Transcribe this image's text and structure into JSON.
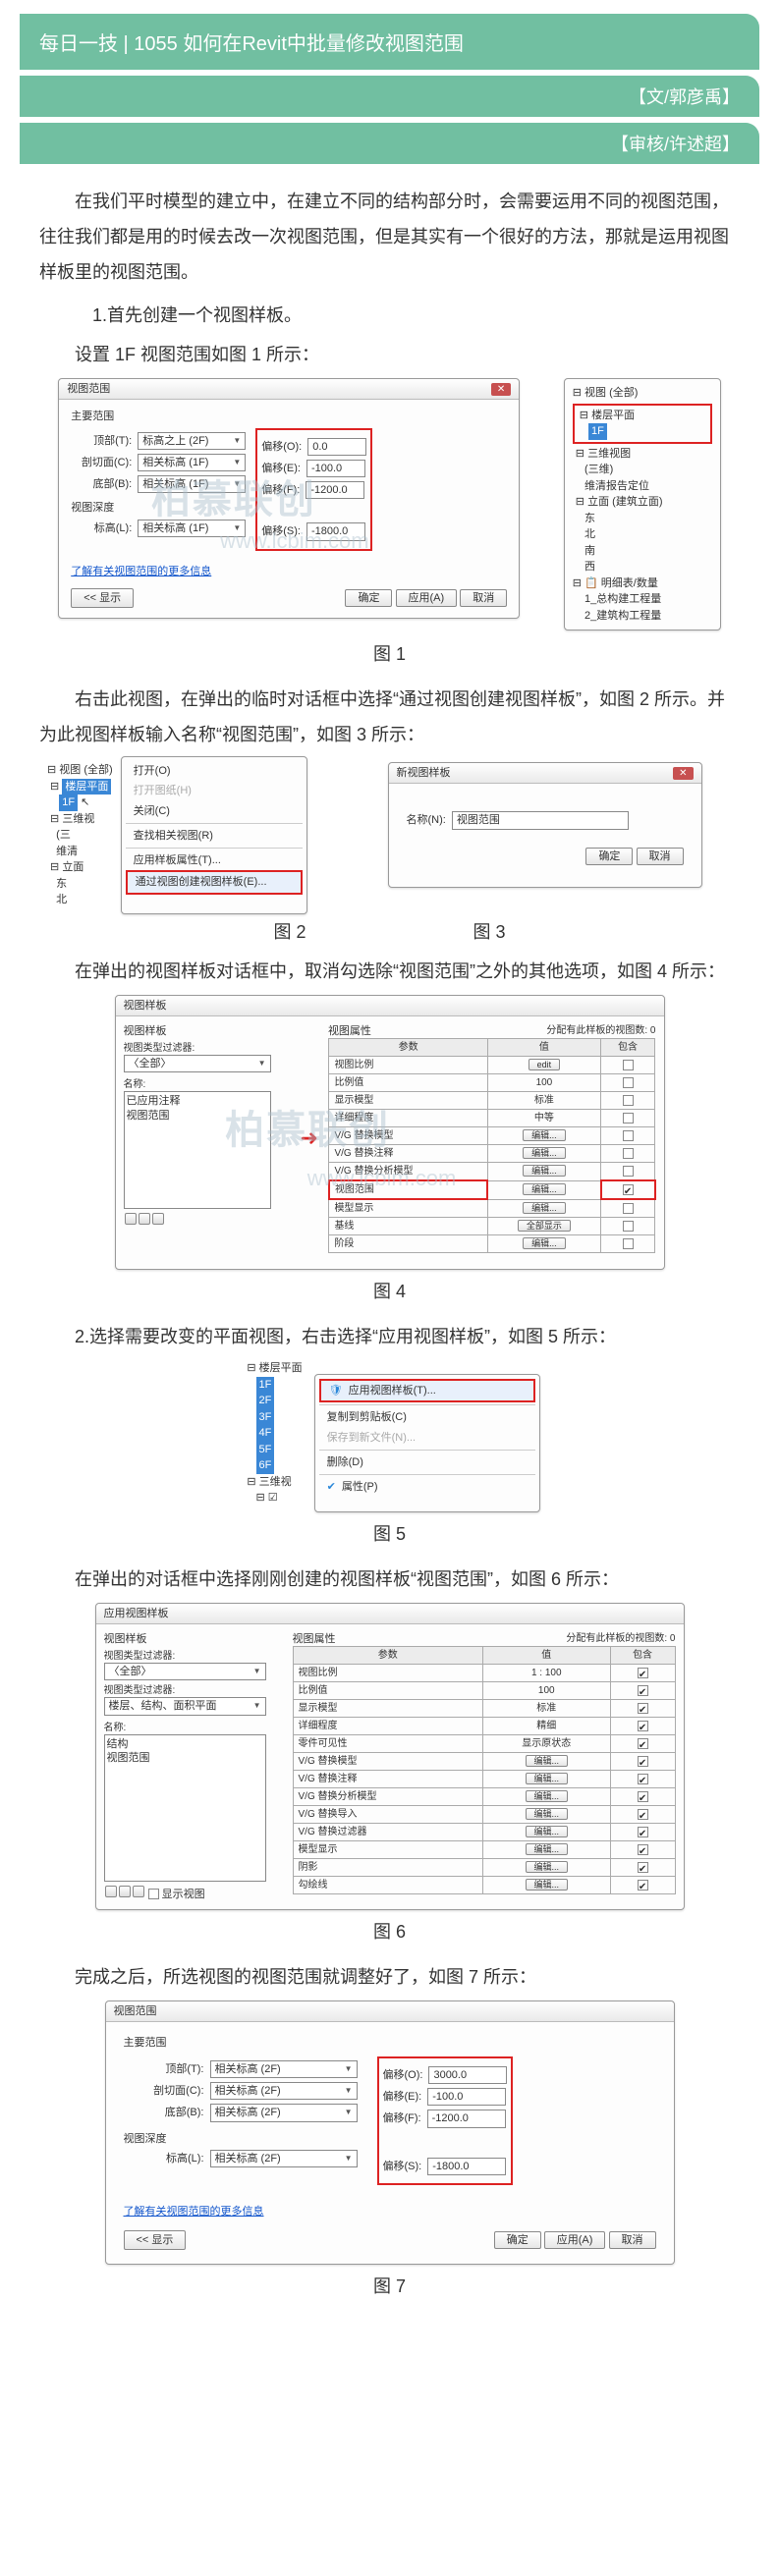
{
  "header": {
    "title": "每日一技 | 1055 如何在Revit中批量修改视图范围",
    "author": "【文/郭彦禹】",
    "reviewer": "【审核/许述超】"
  },
  "p1": "在我们平时模型的建立中，在建立不同的结构部分时，会需要运用不同的视图范围，往往我们都是用的时候去改一次视图范围，但是其实有一个很好的方法，那就是运用视图样板里的视图范围。",
  "step1": "1.首先创建一个视图样板。",
  "p2": "设置 1F 视图范围如图 1 所示：",
  "fig1": {
    "dlg_title": "视图范围",
    "section1": "主要范围",
    "row_top": {
      "lbl": "顶部(T):",
      "sel": "标高之上 (2F)",
      "off_lbl": "偏移(O):",
      "off": "0.0"
    },
    "row_cut": {
      "lbl": "剖切面(C):",
      "sel": "相关标高 (1F)",
      "off_lbl": "偏移(E):",
      "off": "-100.0"
    },
    "row_bot": {
      "lbl": "底部(B):",
      "sel": "相关标高 (1F)",
      "off_lbl": "偏移(F):",
      "off": "-1200.0"
    },
    "section2": "视图深度",
    "row_lvl": {
      "lbl": "标高(L):",
      "sel": "相关标高 (1F)",
      "off_lbl": "偏移(S):",
      "off": "-1800.0"
    },
    "link": "了解有关视图范围的更多信息",
    "show": "<< 显示",
    "ok": "确定",
    "apply": "应用(A)",
    "cancel": "取消",
    "tree_root": "视图 (全部)",
    "tree_lbl_lcp": "楼层平面",
    "tree_sel": "1F",
    "tree_items": [
      "三维视图",
      "(三维)",
      "维清报告定位",
      "立面 (建筑立面)",
      "东",
      "北",
      "南",
      "西",
      "明细表/数量",
      "1_总构建工程量",
      "2_建筑构工程量"
    ]
  },
  "cap1": "图 1",
  "p3": "右击此视图，在弹出的临时对话框中选择“通过视图创建视图样板”，如图 2 所示。并为此视图样板输入名称“视图范围”，如图 3 所示：",
  "fig2": {
    "tree_root": "视图 (全部)",
    "floor": "楼层平面",
    "sel": "1F",
    "menu": [
      "打开(O)",
      "打开图纸(H)",
      "关闭(C)",
      "查找相关视图(R)",
      "应用样板属性(T)...",
      "通过视图创建视图样板(E)..."
    ],
    "tree_rest": [
      "三维视",
      "(三",
      "维清",
      "立面",
      "东",
      "北"
    ]
  },
  "fig3": {
    "title": "新视图样板",
    "name_lbl": "名称(N):",
    "name_val": "视图范围",
    "ok": "确定",
    "cancel": "取消"
  },
  "cap2": "图 2",
  "cap3": "图 3",
  "p4": "在弹出的视图样板对话框中，取消勾选除“视图范围”之外的其他选项，如图 4 所示：",
  "fig4": {
    "title": "视图样板",
    "l_hdr": "视图样板",
    "r_hdr": "视图属性",
    "assigned": "分配有此样板的视图数: 0",
    "filter_lbl": "视图类型过滤器:",
    "filter_val": "〈全部〉",
    "name_lbl": "名称:",
    "templates": [
      "已应用注释"
    ],
    "sel_tpl": "视图范围",
    "cols": [
      "参数",
      "值",
      "包含"
    ],
    "rows": [
      [
        "视图比例",
        "1",
        "edit",
        false
      ],
      [
        "比例值",
        "100",
        "",
        false
      ],
      [
        "显示模型",
        "标准",
        "",
        false
      ],
      [
        "详细程度",
        "中等",
        "",
        false
      ],
      [
        "V/G 替换模型",
        "",
        "编辑...",
        false
      ],
      [
        "V/G 替换注释",
        "",
        "编辑...",
        false
      ],
      [
        "V/G 替换分析模型",
        "",
        "编辑...",
        false
      ],
      [
        "视图范围",
        "",
        "编辑...",
        true
      ],
      [
        "模型显示",
        "",
        "编辑...",
        false
      ],
      [
        "基线",
        "",
        "全部显示",
        false
      ],
      [
        "阶段",
        "",
        "编辑...",
        false
      ]
    ]
  },
  "cap4": "图 4",
  "step2": "2.选择需要改变的平面视图，右击选择“应用视图样板”，如图 5 所示：",
  "fig5": {
    "floor": "楼层平面",
    "levels": [
      "1F",
      "2F",
      "3F",
      "4F",
      "5F",
      "6F"
    ],
    "tree_3d": "三维视",
    "menu_sel": "应用视图样板(T)...",
    "menu": [
      "复制到剪贴板(C)",
      "保存到新文件(N)...",
      "删除(D)",
      "属性(P)"
    ]
  },
  "cap5": "图 5",
  "p5": "在弹出的对话框中选择刚刚创建的视图样板“视图范围”，如图 6 所示：",
  "fig6": {
    "title": "应用视图样板",
    "l_hdr": "视图样板",
    "filter_lbl": "视图类型过滤器:",
    "filter_val": "〈全部〉",
    "type_lbl": "视图类型过滤器:",
    "type_val": "楼层、结构、面积平面",
    "name_lbl": "名称:",
    "sel_tpl": "视图范围",
    "opt_tpl": "结构",
    "r_hdr": "视图属性",
    "assigned": "分配有此样板的视图数: 0",
    "cols": [
      "参数",
      "值",
      "包含"
    ],
    "rows": [
      [
        "视图比例",
        "1 : 100",
        "",
        true
      ],
      [
        "比例值",
        "100",
        "",
        true
      ],
      [
        "显示模型",
        "标准",
        "",
        true
      ],
      [
        "详细程度",
        "精细",
        "",
        true
      ],
      [
        "零件可见性",
        "显示原状态",
        "",
        true
      ],
      [
        "V/G 替换模型",
        "",
        "编辑...",
        true
      ],
      [
        "V/G 替换注释",
        "",
        "编辑...",
        true
      ],
      [
        "V/G 替换分析模型",
        "",
        "编辑...",
        true
      ],
      [
        "V/G 替换导入",
        "",
        "编辑...",
        true
      ],
      [
        "V/G 替换过滤器",
        "",
        "编辑...",
        true
      ],
      [
        "模型显示",
        "",
        "编辑...",
        true
      ],
      [
        "阴影",
        "",
        "编辑...",
        true
      ],
      [
        "勾绘线",
        "",
        "编辑...",
        true
      ]
    ]
  },
  "cap6": "图 6",
  "p6": "完成之后，所选视图的视图范围就调整好了，如图 7 所示：",
  "fig7": {
    "dlg_title": "视图范围",
    "section1": "主要范围",
    "row_top": {
      "lbl": "顶部(T):",
      "sel": "相关标高 (2F)",
      "off_lbl": "偏移(O):",
      "off": "3000.0"
    },
    "row_cut": {
      "lbl": "剖切面(C):",
      "sel": "相关标高 (2F)",
      "off_lbl": "偏移(E):",
      "off": "-100.0"
    },
    "row_bot": {
      "lbl": "底部(B):",
      "sel": "相关标高 (2F)",
      "off_lbl": "偏移(F):",
      "off": "-1200.0"
    },
    "section2": "视图深度",
    "row_lvl": {
      "lbl": "标高(L):",
      "sel": "相关标高 (2F)",
      "off_lbl": "偏移(S):",
      "off": "-1800.0"
    },
    "link": "了解有关视图范围的更多信息",
    "show": "<< 显示",
    "ok": "确定",
    "apply": "应用(A)",
    "cancel": "取消"
  },
  "cap7": "图 7",
  "watermark": {
    "brand": "柏慕联创",
    "url": "www.lcbim.com"
  }
}
